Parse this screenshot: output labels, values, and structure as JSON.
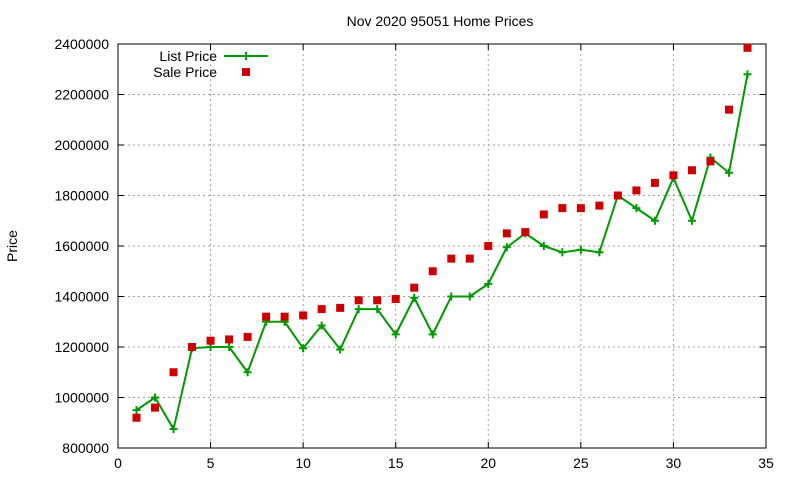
{
  "chart_data": {
    "type": "line",
    "title": "Nov 2020 95051 Home Prices",
    "xlabel": "",
    "ylabel": "Price",
    "xlim": [
      0,
      35
    ],
    "ylim": [
      800000,
      2400000
    ],
    "xticks": [
      0,
      5,
      10,
      15,
      20,
      25,
      30,
      35
    ],
    "yticks": [
      800000,
      1000000,
      1200000,
      1400000,
      1600000,
      1800000,
      2000000,
      2200000,
      2400000
    ],
    "grid": true,
    "legend_position": "top-left",
    "series": [
      {
        "name": "List Price",
        "style": "line-plus",
        "color": "#009900",
        "x": [
          1,
          2,
          3,
          4,
          5,
          6,
          7,
          8,
          9,
          10,
          11,
          12,
          13,
          14,
          15,
          16,
          17,
          18,
          19,
          20,
          21,
          22,
          23,
          24,
          25,
          26,
          27,
          28,
          29,
          30,
          31,
          32,
          33,
          34
        ],
        "values": [
          950000,
          1000000,
          875000,
          1195000,
          1200000,
          1200000,
          1100000,
          1300000,
          1300000,
          1195000,
          1285000,
          1190000,
          1350000,
          1350000,
          1250000,
          1395000,
          1250000,
          1400000,
          1400000,
          1450000,
          1595000,
          1650000,
          1600000,
          1575000,
          1585000,
          1575000,
          1800000,
          1750000,
          1700000,
          1870000,
          1700000,
          1950000,
          1890000,
          2280000
        ]
      },
      {
        "name": "Sale Price",
        "style": "square-points",
        "color": "#cc0000",
        "x": [
          1,
          2,
          3,
          4,
          5,
          6,
          7,
          8,
          9,
          10,
          11,
          12,
          13,
          14,
          15,
          16,
          17,
          18,
          19,
          20,
          21,
          22,
          23,
          24,
          25,
          26,
          27,
          28,
          29,
          30,
          31,
          32,
          33,
          34
        ],
        "values": [
          920000,
          960000,
          1100000,
          1200000,
          1225000,
          1230000,
          1240000,
          1320000,
          1320000,
          1325000,
          1350000,
          1355000,
          1385000,
          1385000,
          1390000,
          1435000,
          1500000,
          1550000,
          1550000,
          1600000,
          1650000,
          1655000,
          1725000,
          1750000,
          1750000,
          1760000,
          1800000,
          1820000,
          1850000,
          1880000,
          1900000,
          1935000,
          2140000,
          2385000
        ]
      }
    ]
  }
}
